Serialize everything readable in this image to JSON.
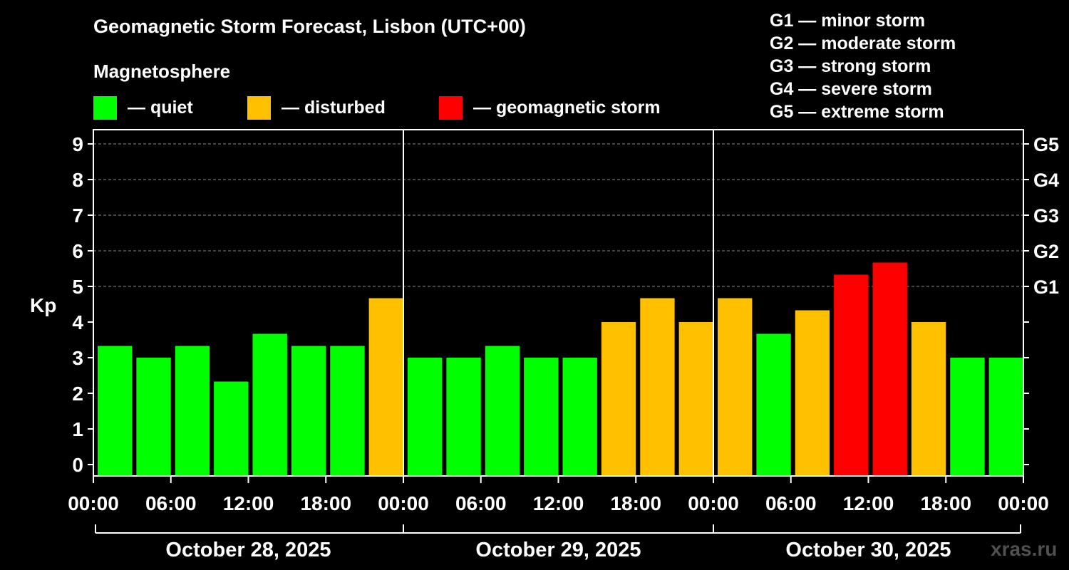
{
  "chart_data": {
    "type": "bar",
    "title": "Geomagnetic Storm Forecast, Lisbon (UTC+00)",
    "ylabel": "Kp",
    "ylim": [
      0,
      9
    ],
    "yticks": [
      "0",
      "1",
      "2",
      "3",
      "4",
      "5",
      "6",
      "7",
      "8",
      "9"
    ],
    "right_axis_labels": [
      {
        "kp": 5,
        "label": "G1"
      },
      {
        "kp": 6,
        "label": "G2"
      },
      {
        "kp": 7,
        "label": "G3"
      },
      {
        "kp": 8,
        "label": "G4"
      },
      {
        "kp": 9,
        "label": "G5"
      }
    ],
    "x_tick_labels": [
      "00:00",
      "06:00",
      "12:00",
      "18:00",
      "00:00",
      "06:00",
      "12:00",
      "18:00",
      "00:00",
      "06:00",
      "12:00",
      "18:00",
      "00:00"
    ],
    "days": [
      "October 28, 2025",
      "October 29, 2025",
      "October 30, 2025"
    ],
    "grid": "horizontal dashed",
    "values": [
      3.33,
      3.0,
      3.33,
      2.33,
      3.67,
      3.33,
      3.33,
      4.67,
      3.0,
      3.0,
      3.33,
      3.0,
      3.0,
      4.0,
      4.67,
      4.0,
      4.67,
      3.67,
      4.33,
      5.33,
      5.67,
      4.0,
      3.0,
      3.0
    ],
    "colors": {
      "quiet": "#00ff00",
      "disturbed": "#ffc000",
      "storm": "#ff0000"
    }
  },
  "legend": {
    "heading": "Magnetosphere",
    "items": [
      {
        "label": "— quiet",
        "color": "#00ff00"
      },
      {
        "label": "— disturbed",
        "color": "#ffc000"
      },
      {
        "label": "— geomagnetic storm",
        "color": "#ff0000"
      }
    ]
  },
  "storm_levels": [
    "G1 — minor storm",
    "G2 — moderate storm",
    "G3 — strong storm",
    "G4 — severe storm",
    "G5 — extreme storm"
  ],
  "credit": "xras.ru"
}
